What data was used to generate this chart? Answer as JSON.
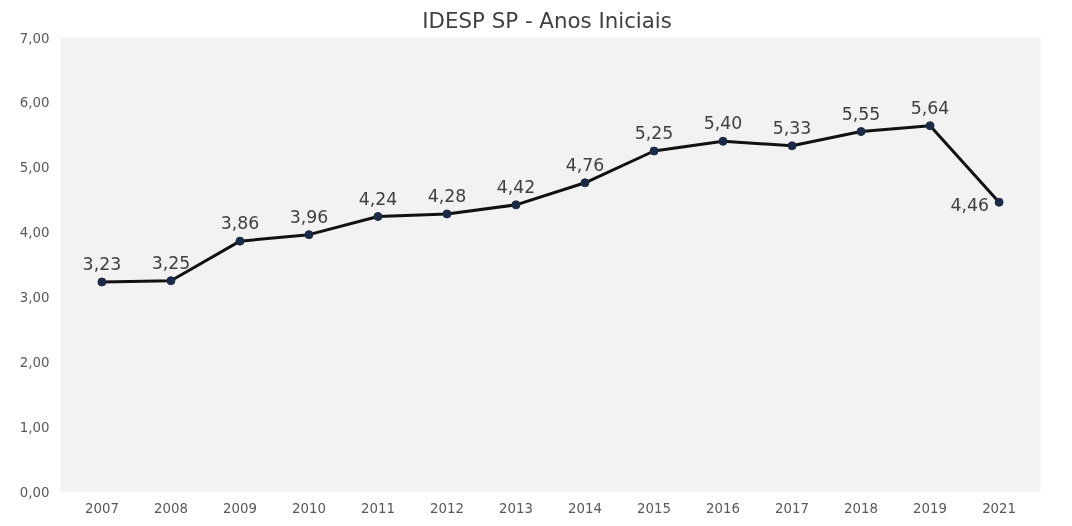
{
  "chart_data": {
    "type": "line",
    "title": "IDESP  SP - Anos Iniciais",
    "categories": [
      "2007",
      "2008",
      "2009",
      "2010",
      "2011",
      "2012",
      "2013",
      "2014",
      "2015",
      "2016",
      "2017",
      "2018",
      "2019",
      "2021"
    ],
    "series": [
      {
        "color": "#111111",
        "values": [
          3.23,
          3.25,
          3.86,
          3.96,
          4.24,
          4.28,
          4.42,
          4.76,
          5.25,
          5.4,
          5.33,
          5.55,
          5.64,
          4.46
        ],
        "value_labels": [
          "3,23",
          "3,25",
          "3,86",
          "3,96",
          "4,24",
          "4,28",
          "4,42",
          "4,76",
          "5,25",
          "5,40",
          "5,33",
          "5,55",
          "5,64",
          "4,46"
        ]
      }
    ],
    "ylim": [
      0,
      7
    ],
    "yticks": [
      {
        "value": 0,
        "label": "0,00"
      },
      {
        "value": 1,
        "label": "1,00"
      },
      {
        "value": 2,
        "label": "2,00"
      },
      {
        "value": 3,
        "label": "3,00"
      },
      {
        "value": 4,
        "label": "4,00"
      },
      {
        "value": 5,
        "label": "5,00"
      },
      {
        "value": 6,
        "label": "6,00"
      },
      {
        "value": 7,
        "label": "7,00"
      }
    ],
    "grid": false,
    "marker": "circle",
    "line_style": "solid"
  }
}
